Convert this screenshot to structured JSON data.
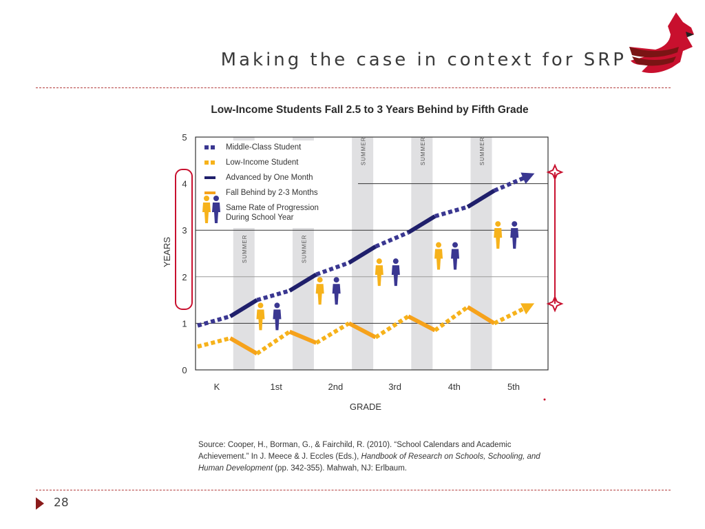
{
  "slide": {
    "title": "Making the case in context for SRP",
    "page_number": "28"
  },
  "source": {
    "text_1": "Source: Cooper, H., Borman, G., & Fairchild, R. (2010). “School Calendars and Academic Achievement.” In J. Meece & J. Eccles (Eds.), ",
    "text_italic_1": "Handbook of Research on Schools, Schooling, and Human Development",
    "text_2": " (pp. 342-355). Mahwah, NJ: Erlbaum."
  },
  "colors": {
    "middle_class": "#3a3791",
    "low_income": "#f6b21b",
    "summer_band": "#e0e0e2",
    "accent_red": "#c8102e",
    "logo_dark": "#8a1b1b"
  },
  "chart_data": {
    "type": "line",
    "title": "Low-Income Students Fall 2.5 to 3 Years Behind by Fifth Grade",
    "xlabel": "GRADE",
    "ylabel": "YEARS",
    "ylim": [
      0,
      5
    ],
    "yticks": [
      "0",
      "1",
      "2",
      "3",
      "4",
      "5"
    ],
    "categories": [
      "K",
      "1st",
      "2nd",
      "3rd",
      "4th",
      "5th"
    ],
    "summer_label": "SUMMER",
    "grid": true,
    "legend_position": "top-left",
    "legend": [
      {
        "label": "Middle-Class Student",
        "kind": "dots",
        "color": "#3a3791"
      },
      {
        "label": "Low-Income Student",
        "kind": "dots",
        "color": "#f6b21b"
      },
      {
        "label": "Advanced by One Month",
        "kind": "line",
        "color": "#1f1f6b"
      },
      {
        "label": "Fall Behind by 2-3 Months",
        "kind": "line",
        "color": "#f6a21b"
      },
      {
        "label": "Same Rate of Progression",
        "label2": "During School Year",
        "kind": "figures"
      }
    ],
    "series": [
      {
        "name": "Middle-Class Student",
        "color": "#3a3791",
        "points": [
          [
            0,
            0.95
          ],
          [
            0.55,
            1.15
          ],
          [
            1.0,
            1.5
          ],
          [
            1.55,
            1.7
          ],
          [
            2.0,
            2.05
          ],
          [
            2.55,
            2.3
          ],
          [
            3.0,
            2.65
          ],
          [
            3.55,
            2.95
          ],
          [
            4.0,
            3.3
          ],
          [
            4.55,
            3.5
          ],
          [
            5.0,
            3.85
          ],
          [
            5.55,
            4.15
          ]
        ]
      },
      {
        "name": "Low-Income Student",
        "color": "#f6b21b",
        "points": [
          [
            0,
            0.5
          ],
          [
            0.55,
            0.68
          ],
          [
            1.0,
            0.35
          ],
          [
            1.55,
            0.82
          ],
          [
            2.0,
            0.58
          ],
          [
            2.55,
            1.0
          ],
          [
            3.0,
            0.7
          ],
          [
            3.55,
            1.15
          ],
          [
            4.0,
            0.85
          ],
          [
            4.55,
            1.35
          ],
          [
            5.0,
            1.0
          ],
          [
            5.55,
            1.35
          ]
        ]
      }
    ],
    "figures": [
      {
        "x": 1.2,
        "y": 1.0
      },
      {
        "x": 2.2,
        "y": 1.55
      },
      {
        "x": 3.2,
        "y": 1.95
      },
      {
        "x": 4.2,
        "y": 2.3
      },
      {
        "x": 5.2,
        "y": 2.75
      }
    ]
  }
}
